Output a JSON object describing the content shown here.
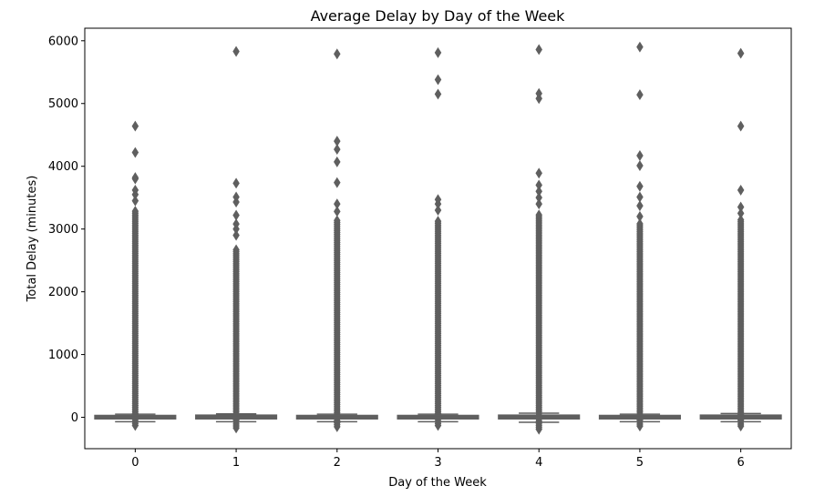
{
  "chart_data": {
    "type": "box",
    "title": "Average Delay by Day of the Week",
    "xlabel": "Day of the Week",
    "ylabel": "Total Delay (minutes)",
    "categories": [
      "0",
      "1",
      "2",
      "3",
      "4",
      "5",
      "6"
    ],
    "ylim": [
      -500,
      6200
    ],
    "yticks": [
      0,
      1000,
      2000,
      3000,
      4000,
      5000,
      6000
    ],
    "grid": false,
    "box_color": "#5f5f5f",
    "boxes": [
      {
        "category": "0",
        "whisker_low": -70,
        "q1": -10,
        "median": 0,
        "q3": 15,
        "whisker_high": 50,
        "outliers_min": -130,
        "outliers_dense_max": 3300,
        "outliers_high": [
          3450,
          3550,
          3620,
          3800,
          3820,
          4220,
          4640
        ]
      },
      {
        "category": "1",
        "whisker_low": -70,
        "q1": -10,
        "median": 0,
        "q3": 20,
        "whisker_high": 55,
        "outliers_min": -170,
        "outliers_dense_max": 2700,
        "outliers_high": [
          2900,
          3000,
          3080,
          3220,
          3430,
          3510,
          3730,
          5830
        ]
      },
      {
        "category": "2",
        "whisker_low": -70,
        "q1": -10,
        "median": 0,
        "q3": 15,
        "whisker_high": 50,
        "outliers_min": -150,
        "outliers_dense_max": 3150,
        "outliers_high": [
          3280,
          3400,
          3740,
          4070,
          4270,
          4400,
          5790
        ]
      },
      {
        "category": "3",
        "whisker_low": -70,
        "q1": -10,
        "median": 0,
        "q3": 15,
        "whisker_high": 50,
        "outliers_min": -130,
        "outliers_dense_max": 3150,
        "outliers_high": [
          3300,
          3400,
          3470,
          5150,
          5380,
          5810
        ]
      },
      {
        "category": "4",
        "whisker_low": -80,
        "q1": -10,
        "median": 0,
        "q3": 20,
        "whisker_high": 65,
        "outliers_min": -190,
        "outliers_dense_max": 3250,
        "outliers_high": [
          3400,
          3500,
          3600,
          3700,
          3890,
          5080,
          5160,
          5860
        ]
      },
      {
        "category": "5",
        "whisker_low": -70,
        "q1": -10,
        "median": 0,
        "q3": 15,
        "whisker_high": 50,
        "outliers_min": -140,
        "outliers_dense_max": 3100,
        "outliers_high": [
          3200,
          3370,
          3510,
          3680,
          4010,
          4170,
          5140,
          5900
        ]
      },
      {
        "category": "6",
        "whisker_low": -70,
        "q1": -10,
        "median": 0,
        "q3": 20,
        "whisker_high": 60,
        "outliers_min": -140,
        "outliers_dense_max": 3150,
        "outliers_high": [
          3250,
          3350,
          3620,
          4640,
          5800
        ]
      }
    ]
  }
}
